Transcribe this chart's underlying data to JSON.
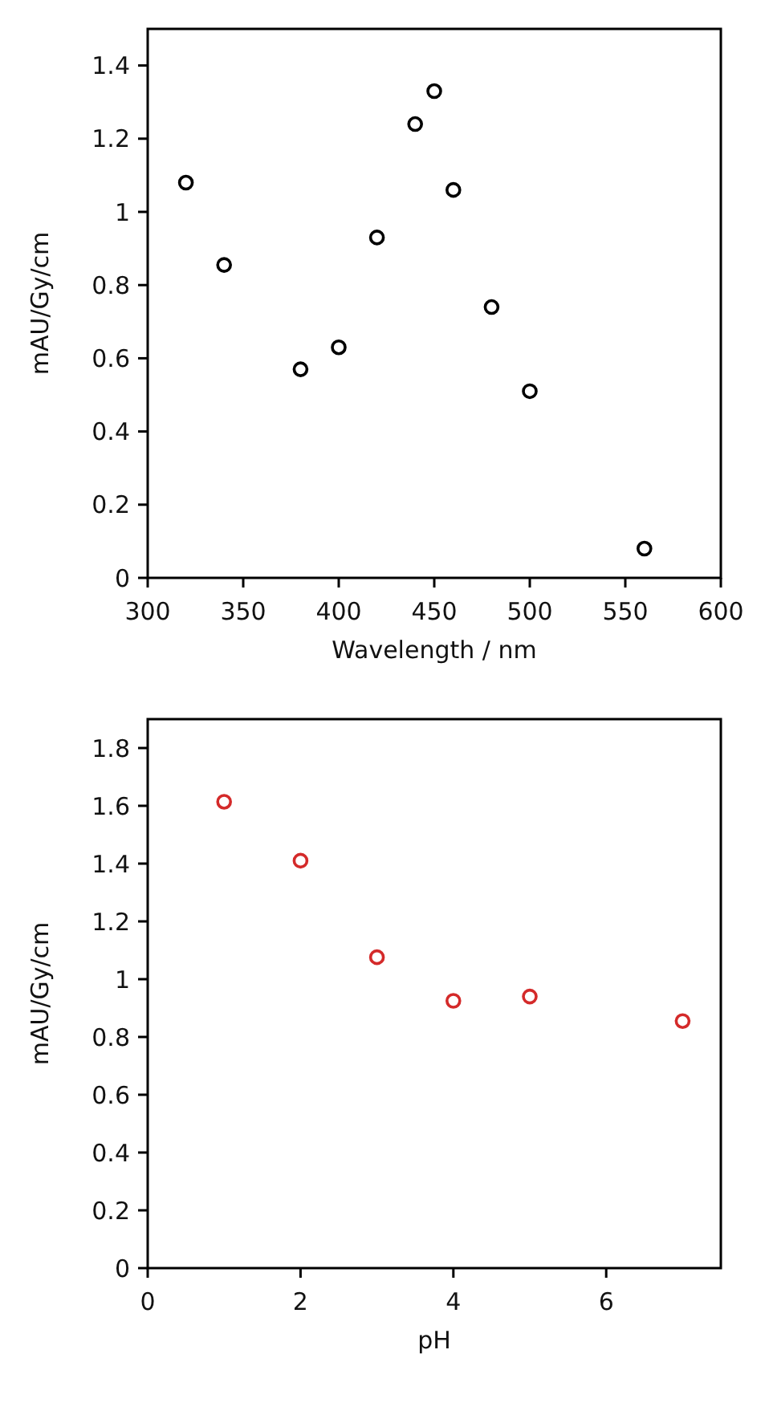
{
  "chart_data": [
    {
      "type": "scatter",
      "xlabel": "Wavelength / nm",
      "ylabel": "mAU/Gy/cm",
      "xlim": [
        300,
        600
      ],
      "xticks": [
        300,
        350,
        400,
        450,
        500,
        550,
        600
      ],
      "ylim": [
        0,
        1.5
      ],
      "yticks": [
        0,
        0.2,
        0.4,
        0.6,
        0.8,
        1,
        1.2,
        1.4
      ],
      "grid": false,
      "marker": "circle",
      "series": [
        {
          "color": "#000000",
          "x": [
            320,
            340,
            380,
            400,
            420,
            440,
            450,
            460,
            480,
            500,
            560
          ],
          "values": [
            1.08,
            0.855,
            0.57,
            0.63,
            0.93,
            1.24,
            1.33,
            1.06,
            0.74,
            0.51,
            0.08
          ]
        }
      ]
    },
    {
      "type": "scatter",
      "xlabel": "pH",
      "ylabel": "mAU/Gy/cm",
      "xlim": [
        0,
        7.5
      ],
      "xticks": [
        0,
        2,
        4,
        6
      ],
      "ylim": [
        0,
        1.9
      ],
      "yticks": [
        0,
        0.2,
        0.4,
        0.6,
        0.8,
        1,
        1.2,
        1.4,
        1.6,
        1.8
      ],
      "grid": false,
      "marker": "circle",
      "series": [
        {
          "color": "#d42a2a",
          "x": [
            1,
            2,
            3,
            4,
            5,
            7
          ],
          "values": [
            1.614,
            1.41,
            1.076,
            0.925,
            0.94,
            0.855
          ]
        }
      ]
    }
  ]
}
